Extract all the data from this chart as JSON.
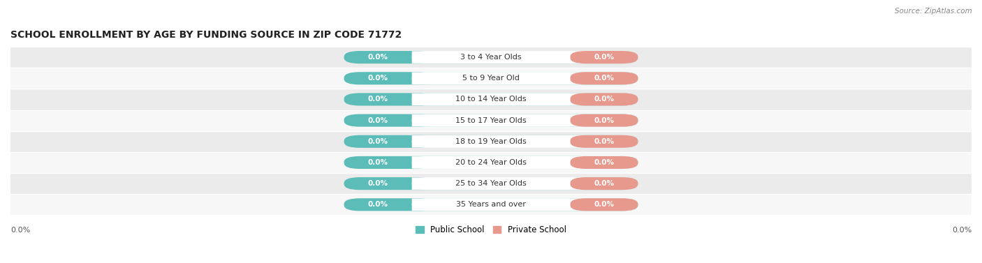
{
  "title": "SCHOOL ENROLLMENT BY AGE BY FUNDING SOURCE IN ZIP CODE 71772",
  "source": "Source: ZipAtlas.com",
  "categories": [
    "3 to 4 Year Olds",
    "5 to 9 Year Old",
    "10 to 14 Year Olds",
    "15 to 17 Year Olds",
    "18 to 19 Year Olds",
    "20 to 24 Year Olds",
    "25 to 34 Year Olds",
    "35 Years and over"
  ],
  "public_values": [
    0.0,
    0.0,
    0.0,
    0.0,
    0.0,
    0.0,
    0.0,
    0.0
  ],
  "private_values": [
    0.0,
    0.0,
    0.0,
    0.0,
    0.0,
    0.0,
    0.0,
    0.0
  ],
  "public_color": "#5bbcb8",
  "private_color": "#e8998d",
  "public_label": "Public School",
  "private_label": "Private School",
  "bg_row_even": "#ebebeb",
  "bg_row_odd": "#f7f7f7",
  "title_fontsize": 10,
  "bar_height": 0.6,
  "x_tick_label": "0.0%",
  "title_color": "#222222",
  "source_color": "#888888",
  "label_color": "#333333",
  "value_color": "#ffffff",
  "bar_value_fontsize": 7.5,
  "cat_label_fontsize": 8,
  "legend_fontsize": 8.5
}
